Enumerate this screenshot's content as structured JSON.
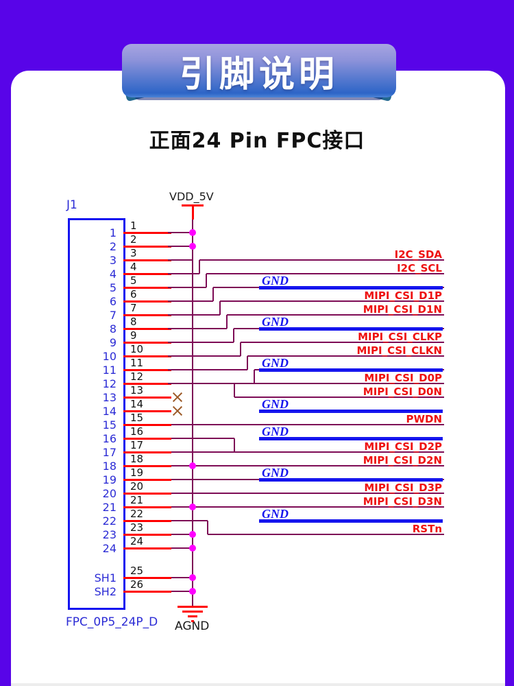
{
  "header": {
    "title": "引脚说明",
    "subtitle": "正面24 Pin FPC接口"
  },
  "connector": {
    "designator": "J1",
    "footprint": "FPC_0P5_24P_D",
    "pin_names": [
      "1",
      "2",
      "3",
      "4",
      "5",
      "6",
      "7",
      "8",
      "9",
      "10",
      "11",
      "12",
      "13",
      "14",
      "15",
      "16",
      "17",
      "18",
      "19",
      "20",
      "21",
      "22",
      "23",
      "24",
      "SH1",
      "SH2"
    ],
    "pad_numbers": [
      "1",
      "2",
      "3",
      "4",
      "5",
      "6",
      "7",
      "8",
      "9",
      "10",
      "11",
      "12",
      "13",
      "14",
      "15",
      "16",
      "17",
      "18",
      "19",
      "20",
      "21",
      "22",
      "23",
      "24",
      "25",
      "26"
    ]
  },
  "nets": {
    "power": "VDD_5V",
    "ground": "AGND",
    "rows": [
      {
        "label": "I2C_SDA",
        "kind": "signal"
      },
      {
        "label": "I2C_SCL",
        "kind": "signal"
      },
      {
        "label": "GND",
        "kind": "ground"
      },
      {
        "label": "MIPI_CSI_D1P",
        "kind": "signal"
      },
      {
        "label": "MIPI_CSI_D1N",
        "kind": "signal"
      },
      {
        "label": "GND",
        "kind": "ground"
      },
      {
        "label": "MIPI_CSI_CLKP",
        "kind": "signal"
      },
      {
        "label": "MIPI_CSI_CLKN",
        "kind": "signal"
      },
      {
        "label": "GND",
        "kind": "ground"
      },
      {
        "label": "MIPI_CSI_D0P",
        "kind": "signal"
      },
      {
        "label": "MIPI_CSI_D0N",
        "kind": "signal"
      },
      {
        "label": "GND",
        "kind": "ground"
      },
      {
        "label": "PWDN",
        "kind": "signal"
      },
      {
        "label": "GND",
        "kind": "ground"
      },
      {
        "label": "MIPI_CSI_D2P",
        "kind": "signal"
      },
      {
        "label": "MIPI_CSI_D2N",
        "kind": "signal"
      },
      {
        "label": "GND",
        "kind": "ground"
      },
      {
        "label": "MIPI_CSI_D3P",
        "kind": "signal"
      },
      {
        "label": "MIPI_CSI_D3N",
        "kind": "signal"
      },
      {
        "label": "GND",
        "kind": "ground"
      },
      {
        "label": "RSTn",
        "kind": "signal"
      }
    ],
    "no_connect_pads": [
      "13",
      "14"
    ],
    "junction_pads": [
      "1",
      "2",
      "18",
      "21",
      "23",
      "24",
      "25",
      "26"
    ]
  },
  "colors": {
    "background": "#5804E8",
    "card": "#FFFFFF",
    "wire": "#7D0B55",
    "stub": "#FF0000",
    "ground_bus": "#1515EE",
    "signal_label": "#EE1111",
    "junction": "#FF00FF",
    "connector_outline": "#1414F0",
    "blue_text": "#2B2BD5",
    "no_connect": "#9C5A28",
    "power_symbol": "#FF0000"
  }
}
